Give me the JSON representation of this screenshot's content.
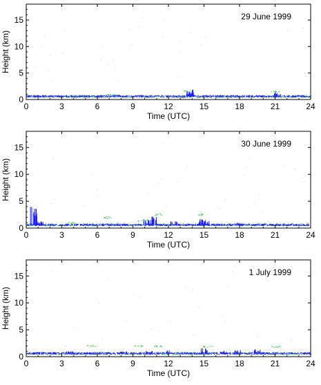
{
  "chart_data": [
    {
      "type": "scatter",
      "title": "29 June 1999",
      "xlabel": "Time (UTC)",
      "ylabel": "Height (km)",
      "xlim": [
        0,
        24
      ],
      "ylim": [
        0,
        18
      ],
      "xticks": [
        "0",
        "3",
        "6",
        "9",
        "12",
        "15",
        "18",
        "21",
        "24"
      ],
      "yticks": [
        "0",
        "5",
        "10",
        "15"
      ],
      "grid": false,
      "base_layer_height": 0.6,
      "blue_features": [
        [
          1.0,
          0.4
        ],
        [
          4.8,
          0.8
        ],
        [
          7.6,
          0.9
        ],
        [
          9.2,
          0.7
        ],
        [
          13.8,
          1.9
        ],
        [
          13.9,
          1.5
        ],
        [
          21.2,
          1.4
        ]
      ],
      "green_features": [
        [
          4.5,
          0.8
        ],
        [
          7.2,
          1.0
        ],
        [
          13.6,
          1.6
        ],
        [
          21.0,
          1.5
        ]
      ]
    },
    {
      "type": "scatter",
      "title": "30 June 1999",
      "xlabel": "Time (UTC)",
      "ylabel": "Height (km)",
      "xlim": [
        0,
        24
      ],
      "ylim": [
        0,
        18
      ],
      "xticks": [
        "0",
        "3",
        "6",
        "9",
        "12",
        "15",
        "18",
        "21",
        "24"
      ],
      "yticks": [
        "0",
        "5",
        "10",
        "15"
      ],
      "grid": false,
      "base_layer_height": 0.6,
      "blue_features": [
        [
          0.6,
          4.2
        ],
        [
          1.2,
          1.4
        ],
        [
          10.2,
          1.7
        ],
        [
          10.8,
          2.2
        ],
        [
          12.5,
          1.3
        ],
        [
          14.8,
          1.9
        ],
        [
          15.2,
          1.5
        ],
        [
          18.0,
          1.0
        ]
      ],
      "green_features": [
        [
          3.8,
          1.0
        ],
        [
          6.9,
          2.0
        ],
        [
          9.8,
          1.5
        ],
        [
          11.0,
          2.6
        ],
        [
          14.8,
          2.6
        ]
      ]
    },
    {
      "type": "scatter",
      "title": "1 July 1999",
      "xlabel": "Time (UTC)",
      "ylabel": "Height (km)",
      "xlim": [
        0,
        24
      ],
      "ylim": [
        0,
        18
      ],
      "xticks": [
        "0",
        "3",
        "6",
        "9",
        "12",
        "15",
        "18",
        "21",
        "24"
      ],
      "yticks": [
        "0",
        "5",
        "10",
        "15"
      ],
      "grid": false,
      "base_layer_height": 0.6,
      "blue_features": [
        [
          1.2,
          0.9
        ],
        [
          3.7,
          1.0
        ],
        [
          8.2,
          1.0
        ],
        [
          10.4,
          1.1
        ],
        [
          12.0,
          1.2
        ],
        [
          15.0,
          1.6
        ],
        [
          16.6,
          1.1
        ],
        [
          17.8,
          1.3
        ],
        [
          19.5,
          1.4
        ]
      ],
      "green_features": [
        [
          5.5,
          2.0
        ],
        [
          9.4,
          2.1
        ],
        [
          11.0,
          2.0
        ],
        [
          15.3,
          1.9
        ],
        [
          21.0,
          1.9
        ]
      ]
    }
  ],
  "colors": {
    "blue": "#1a1aff",
    "green": "#33cc55",
    "axes": "#000000"
  }
}
